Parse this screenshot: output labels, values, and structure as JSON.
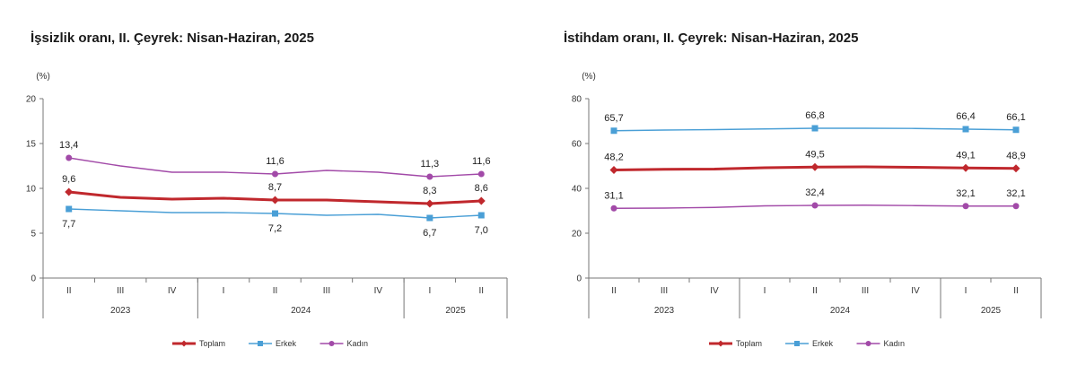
{
  "chart_data": [
    {
      "type": "line",
      "title": "İşsizlik oranı, II. Çeyrek: Nisan-Haziran, 2025",
      "unit_label": "(%)",
      "categories": [
        "II",
        "III",
        "IV",
        "I",
        "II",
        "III",
        "IV",
        "I",
        "II"
      ],
      "year_groups": [
        {
          "label": "2023",
          "start": 0,
          "end": 2
        },
        {
          "label": "2024",
          "start": 3,
          "end": 6
        },
        {
          "label": "2025",
          "start": 7,
          "end": 8
        }
      ],
      "yticks": [
        "0",
        "5",
        "10",
        "15",
        "20"
      ],
      "ylim": [
        0,
        20
      ],
      "legend_position": "bottom",
      "series": [
        {
          "name": "Toplam",
          "color": "#c0282d",
          "marker": "diamond",
          "values": [
            9.6,
            9.0,
            8.8,
            8.9,
            8.7,
            8.7,
            8.5,
            8.3,
            8.6
          ],
          "labels": [
            {
              "i": 0,
              "text": "9,6",
              "pos": "above"
            },
            {
              "i": 4,
              "text": "8,7",
              "pos": "above"
            },
            {
              "i": 7,
              "text": "8,3",
              "pos": "above"
            },
            {
              "i": 8,
              "text": "8,6",
              "pos": "above"
            }
          ]
        },
        {
          "name": "Erkek",
          "color": "#4a9fd6",
          "marker": "square",
          "values": [
            7.7,
            7.5,
            7.3,
            7.3,
            7.2,
            7.0,
            7.1,
            6.7,
            7.0
          ],
          "labels": [
            {
              "i": 0,
              "text": "7,7",
              "pos": "below"
            },
            {
              "i": 4,
              "text": "7,2",
              "pos": "below"
            },
            {
              "i": 7,
              "text": "6,7",
              "pos": "below"
            },
            {
              "i": 8,
              "text": "7,0",
              "pos": "below"
            }
          ]
        },
        {
          "name": "Kadın",
          "color": "#a24aa8",
          "marker": "circle",
          "values": [
            13.4,
            12.5,
            11.8,
            11.8,
            11.6,
            12.0,
            11.8,
            11.3,
            11.6
          ],
          "labels": [
            {
              "i": 0,
              "text": "13,4",
              "pos": "above"
            },
            {
              "i": 4,
              "text": "11,6",
              "pos": "above"
            },
            {
              "i": 7,
              "text": "11,3",
              "pos": "above"
            },
            {
              "i": 8,
              "text": "11,6",
              "pos": "above"
            }
          ]
        }
      ]
    },
    {
      "type": "line",
      "title": "İstihdam oranı, II. Çeyrek: Nisan-Haziran, 2025",
      "unit_label": "(%)",
      "categories": [
        "II",
        "III",
        "IV",
        "I",
        "II",
        "III",
        "IV",
        "I",
        "II"
      ],
      "year_groups": [
        {
          "label": "2023",
          "start": 0,
          "end": 2
        },
        {
          "label": "2024",
          "start": 3,
          "end": 6
        },
        {
          "label": "2025",
          "start": 7,
          "end": 8
        }
      ],
      "yticks": [
        "0",
        "20",
        "40",
        "60",
        "80"
      ],
      "ylim": [
        0,
        80
      ],
      "legend_position": "bottom",
      "series": [
        {
          "name": "Toplam",
          "color": "#c0282d",
          "marker": "diamond",
          "values": [
            48.2,
            48.5,
            48.6,
            49.2,
            49.5,
            49.6,
            49.4,
            49.1,
            48.9
          ],
          "labels": [
            {
              "i": 0,
              "text": "48,2",
              "pos": "above"
            },
            {
              "i": 4,
              "text": "49,5",
              "pos": "above"
            },
            {
              "i": 7,
              "text": "49,1",
              "pos": "above"
            },
            {
              "i": 8,
              "text": "48,9",
              "pos": "above"
            }
          ]
        },
        {
          "name": "Erkek",
          "color": "#4a9fd6",
          "marker": "square",
          "values": [
            65.7,
            66.0,
            66.2,
            66.5,
            66.8,
            66.8,
            66.7,
            66.4,
            66.1
          ],
          "labels": [
            {
              "i": 0,
              "text": "65,7",
              "pos": "above"
            },
            {
              "i": 4,
              "text": "66,8",
              "pos": "above"
            },
            {
              "i": 7,
              "text": "66,4",
              "pos": "above"
            },
            {
              "i": 8,
              "text": "66,1",
              "pos": "above"
            }
          ]
        },
        {
          "name": "Kadın",
          "color": "#a24aa8",
          "marker": "circle",
          "values": [
            31.1,
            31.2,
            31.5,
            32.2,
            32.4,
            32.5,
            32.3,
            32.1,
            32.1
          ],
          "labels": [
            {
              "i": 0,
              "text": "31,1",
              "pos": "above"
            },
            {
              "i": 4,
              "text": "32,4",
              "pos": "above"
            },
            {
              "i": 7,
              "text": "32,1",
              "pos": "above"
            },
            {
              "i": 8,
              "text": "32,1",
              "pos": "above"
            }
          ]
        }
      ]
    }
  ]
}
